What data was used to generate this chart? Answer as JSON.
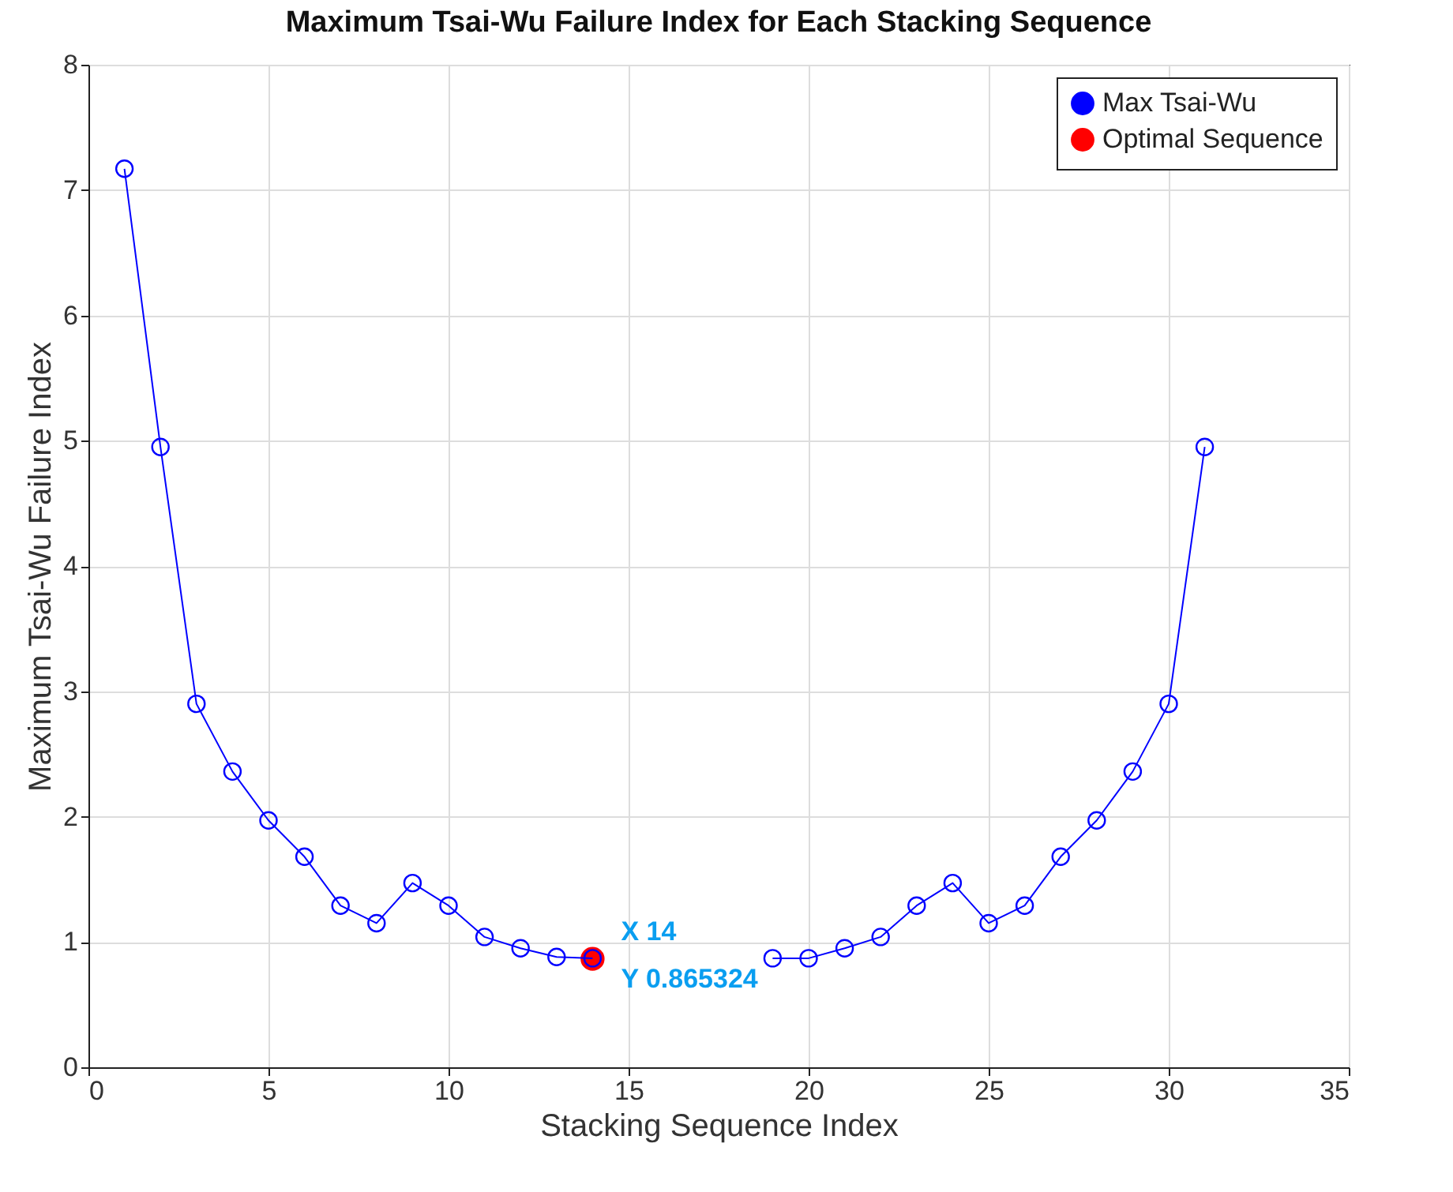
{
  "chart_data": {
    "type": "line",
    "title": "Maximum Tsai-Wu Failure Index for Each Stacking Sequence",
    "xlabel": "Stacking Sequence Index",
    "ylabel": "Maximum Tsai-Wu Failure Index",
    "x": [
      1,
      2,
      3,
      4,
      5,
      6,
      7,
      8,
      9,
      10,
      11,
      12,
      13,
      14,
      15,
      16,
      17,
      18,
      19,
      20,
      21,
      22,
      23,
      24,
      25,
      26,
      27,
      28,
      29,
      30,
      31
    ],
    "series": [
      {
        "name": "Max Tsai-Wu",
        "color": "#0000ff",
        "values": [
          7.17,
          4.95,
          2.9,
          2.36,
          1.97,
          1.68,
          1.29,
          1.15,
          1.47,
          1.29,
          1.04,
          0.95,
          0.88,
          0.87,
          null,
          null,
          null,
          null,
          0.87,
          0.87,
          0.95,
          1.04,
          1.29,
          1.47,
          1.15,
          1.29,
          1.68,
          1.97,
          2.36,
          2.9,
          4.95
        ]
      },
      {
        "name": "Optimal Sequence",
        "type": "scatter",
        "color": "#ff0000",
        "x": [
          14
        ],
        "values": [
          0.865324
        ]
      }
    ],
    "annotations": [
      {
        "text": "X 14\nY 0.865324",
        "x": 14,
        "y": 0.865324
      }
    ],
    "xlim": [
      0,
      35
    ],
    "xticks": [
      0,
      5,
      10,
      15,
      20,
      25,
      30,
      35
    ],
    "ylim": [
      0,
      8
    ],
    "yticks": [
      0,
      1,
      2,
      3,
      4,
      5,
      6,
      7,
      8
    ],
    "grid": true,
    "legend": "top right",
    "marker": "circle"
  }
}
